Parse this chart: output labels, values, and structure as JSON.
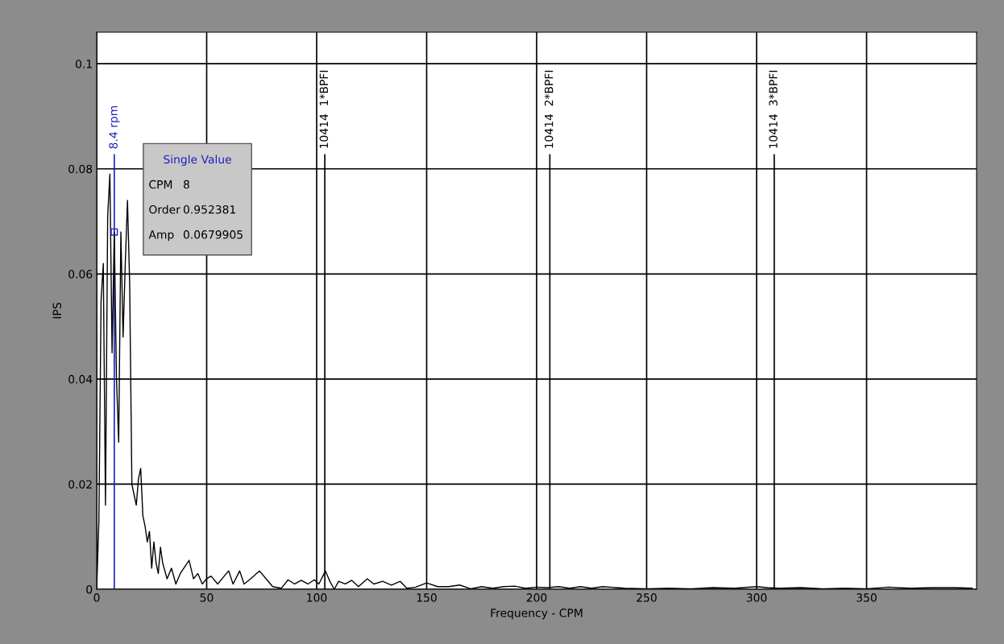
{
  "chart_data": {
    "type": "line",
    "xlabel": "Frequency - CPM",
    "ylabel": "IPS",
    "xlim": [
      0,
      400
    ],
    "xticks": [
      0,
      50,
      100,
      150,
      200,
      250,
      300,
      350
    ],
    "ylim": [
      0,
      0.106
    ],
    "yticks": [
      0,
      0.02,
      0.04,
      0.06,
      0.08,
      0.1
    ],
    "grid": true,
    "marker": "none",
    "line_style": "solid",
    "series": [
      {
        "color": "#000000",
        "x": [
          0,
          1,
          2,
          3,
          4,
          5,
          6,
          7,
          8,
          9,
          10,
          11,
          12,
          13,
          14,
          15,
          16,
          17,
          18,
          19,
          20,
          21,
          22,
          23,
          24,
          25,
          26,
          27,
          28,
          29,
          30,
          32,
          34,
          36,
          38,
          42,
          44,
          46,
          48,
          50,
          52,
          55,
          58,
          60,
          62,
          65,
          67,
          70,
          74,
          77,
          80,
          84,
          87,
          90,
          93,
          96,
          99,
          101,
          104,
          106,
          108,
          110,
          113,
          116,
          119,
          123,
          126,
          130,
          134,
          138,
          141,
          145,
          150,
          155,
          160,
          165,
          170,
          175,
          180,
          185,
          190,
          195,
          200,
          205,
          210,
          215,
          220,
          225,
          230,
          240,
          250,
          260,
          270,
          280,
          290,
          300,
          305,
          310,
          320,
          330,
          340,
          350,
          360,
          370,
          380,
          390,
          398
        ],
        "values": [
          0,
          0.013,
          0.055,
          0.062,
          0.016,
          0.071,
          0.079,
          0.045,
          0.068,
          0.04,
          0.028,
          0.068,
          0.048,
          0.062,
          0.074,
          0.058,
          0.02,
          0.018,
          0.016,
          0.021,
          0.023,
          0.014,
          0.012,
          0.009,
          0.011,
          0.004,
          0.009,
          0.005,
          0.003,
          0.008,
          0.005,
          0.002,
          0.004,
          0.001,
          0.003,
          0.0055,
          0.002,
          0.003,
          0.001,
          0.002,
          0.0025,
          0.001,
          0.0025,
          0.0035,
          0.001,
          0.0035,
          0.001,
          0.002,
          0.0035,
          0.002,
          0.0005,
          0.0002,
          0.0018,
          0.001,
          0.0017,
          0.001,
          0.0018,
          0.001,
          0.0035,
          0.0015,
          0,
          0.0015,
          0.001,
          0.0017,
          0.0005,
          0.002,
          0.001,
          0.0015,
          0.0008,
          0.0015,
          0.0002,
          0.0004,
          0.0012,
          0.0005,
          0.0005,
          0.0008,
          0.0001,
          0.0005,
          0.0002,
          0.0005,
          0.0006,
          0.0002,
          0.0004,
          0.0003,
          0.0005,
          0.0002,
          0.0005,
          0.0002,
          0.0005,
          0.0002,
          0.0001,
          0.0002,
          0.0001,
          0.0003,
          0.0002,
          0.0005,
          0.0003,
          0.0002,
          0.0003,
          0.0001,
          0.0002,
          0.0001,
          0.0004,
          0.0002,
          0.0003,
          0.0003,
          0.0002
        ]
      },
      {
        "type": "scatter",
        "marker": "square",
        "color": "#2020c0",
        "x": [
          8
        ],
        "values": [
          0.0679905
        ]
      }
    ],
    "ref_lines": [
      {
        "axis": "x",
        "value": 8,
        "label": "8.4 rpm",
        "color": "#2020c0"
      },
      {
        "axis": "x",
        "value": 103.7,
        "label": "10414  1*BPFI",
        "color": "#000000"
      },
      {
        "axis": "x",
        "value": 206,
        "label": "10414  2*BPFI",
        "color": "#000000"
      },
      {
        "axis": "x",
        "value": 308,
        "label": "10414  3*BPFI",
        "color": "#000000"
      }
    ],
    "annotations": [
      "Single Value",
      "CPM",
      "8",
      "Order",
      "0.952381",
      "Amp",
      "0.0679905"
    ]
  }
}
